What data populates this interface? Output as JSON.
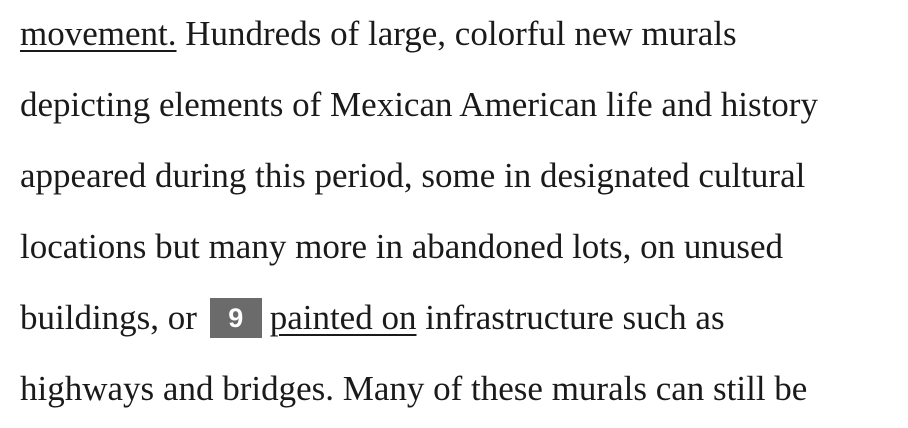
{
  "passage": {
    "line1": {
      "underlined": "movement.",
      "rest": " Hundreds of large, colorful new murals"
    },
    "line2": "depicting elements of Mexican American life and history",
    "line3": "appeared during this period, some in designated cultural",
    "line4": "locations but many more in abandoned lots, on unused",
    "line5": {
      "before": "buildings, or",
      "question_number": "9",
      "underlined": "painted on",
      "after": " infrastructure such as"
    },
    "line6": "highways and bridges. Many of these murals can still be"
  },
  "colors": {
    "text": "#1a1a1a",
    "question_box_bg": "#6b6b6b",
    "question_box_text": "#ffffff",
    "background": "#ffffff"
  }
}
